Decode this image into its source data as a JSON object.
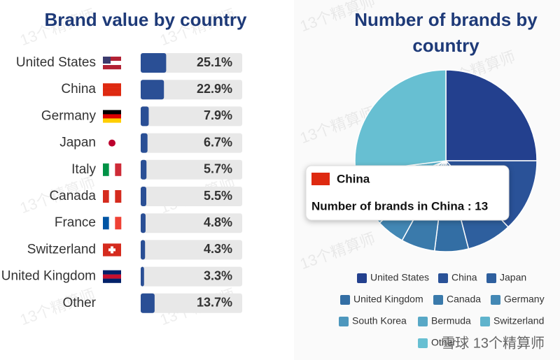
{
  "chart_data": [
    {
      "type": "hbar",
      "title": "Brand value by country",
      "categories": [
        "United States",
        "China",
        "Germany",
        "Japan",
        "Italy",
        "Canada",
        "France",
        "Switzerland",
        "United Kingdom",
        "Other"
      ],
      "values": [
        25.1,
        22.9,
        7.9,
        6.7,
        5.7,
        5.5,
        4.8,
        4.3,
        3.3,
        13.7
      ],
      "value_labels": [
        "25.1%",
        "22.9%",
        "7.9%",
        "6.7%",
        "5.7%",
        "5.5%",
        "4.8%",
        "4.3%",
        "3.3%",
        "13.7%"
      ],
      "xlim": [
        0,
        100
      ],
      "color": "#2a4f95"
    },
    {
      "type": "pie",
      "title": "Number of brands by country",
      "categories": [
        "United States",
        "China",
        "Japan",
        "United Kingdom",
        "Canada",
        "Germany",
        "South Korea",
        "Bermuda",
        "Switzerland",
        "Other"
      ],
      "values": [
        25,
        13,
        8,
        6,
        6,
        5,
        4,
        2,
        4,
        27
      ],
      "colors": [
        "#23408e",
        "#2a5298",
        "#2e5f9e",
        "#336ea4",
        "#3a7aab",
        "#4388b5",
        "#4d97bd",
        "#58a8c6",
        "#5fb3cc",
        "#67bfd2"
      ],
      "tooltip": {
        "title": "China",
        "text": "Number of brands in China : 13"
      }
    }
  ],
  "watermark": "13个精算师",
  "footer": "雪球 13个精算师"
}
